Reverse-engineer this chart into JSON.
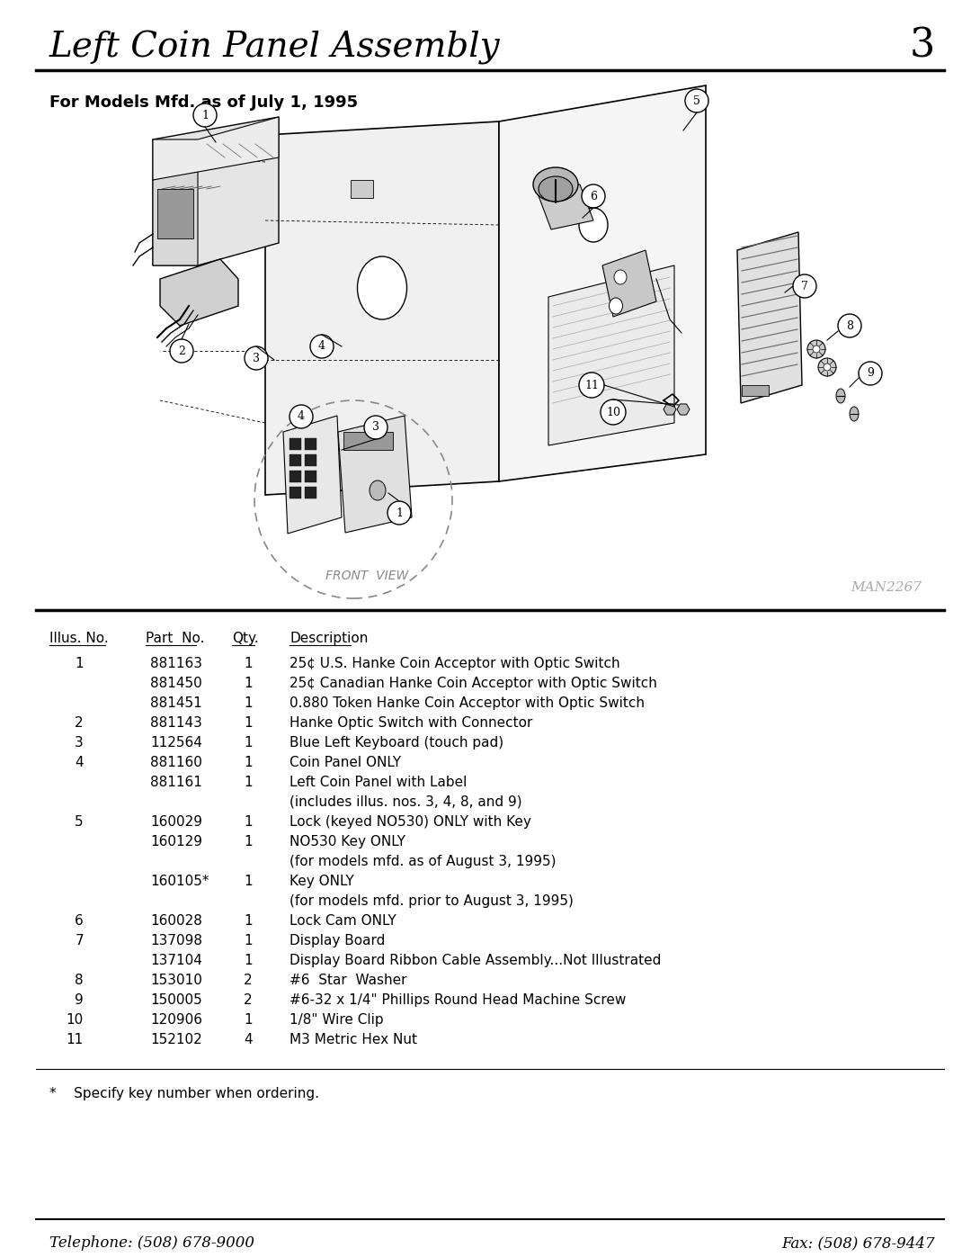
{
  "title": "Left Coin Panel Assembly",
  "page_number": "3",
  "subtitle": "For Models Mfd. as of July 1, 1995",
  "man_number": "MAN2267",
  "table_headers": [
    "Illus. No.",
    "Part  No.",
    "Qty.",
    "Description"
  ],
  "table_rows": [
    [
      "1",
      "881163",
      "1",
      "25¢ U.S. Hanke Coin Acceptor with Optic Switch"
    ],
    [
      "",
      "881450",
      "1",
      "25¢ Canadian Hanke Coin Acceptor with Optic Switch"
    ],
    [
      "",
      "881451",
      "1",
      "0.880 Token Hanke Coin Acceptor with Optic Switch"
    ],
    [
      "2",
      "881143",
      "1",
      "Hanke Optic Switch with Connector"
    ],
    [
      "3",
      "112564",
      "1",
      "Blue Left Keyboard (touch pad)"
    ],
    [
      "4",
      "881160",
      "1",
      "Coin Panel ONLY"
    ],
    [
      "",
      "881161",
      "1",
      "Left Coin Panel with Label"
    ],
    [
      "",
      "",
      "",
      "(includes illus. nos. 3, 4, 8, and 9)"
    ],
    [
      "5",
      "160029",
      "1",
      "Lock (keyed NO530) ONLY with Key"
    ],
    [
      "",
      "160129",
      "1",
      "NO530 Key ONLY"
    ],
    [
      "",
      "",
      "",
      "(for models mfd. as of August 3, 1995)"
    ],
    [
      "",
      "160105*",
      "1",
      "Key ONLY"
    ],
    [
      "",
      "",
      "",
      "(for models mfd. prior to August 3, 1995)"
    ],
    [
      "6",
      "160028",
      "1",
      "Lock Cam ONLY"
    ],
    [
      "7",
      "137098",
      "1",
      "Display Board"
    ],
    [
      "",
      "137104",
      "1",
      "Display Board Ribbon Cable Assembly...Not Illustrated"
    ],
    [
      "8",
      "153010",
      "2",
      "#6  Star  Washer"
    ],
    [
      "9",
      "150005",
      "2",
      "#6-32 x 1/4\" Phillips Round Head Machine Screw"
    ],
    [
      "10",
      "120906",
      "1",
      "1/8\" Wire Clip"
    ],
    [
      "11",
      "152102",
      "4",
      "M3 Metric Hex Nut"
    ]
  ],
  "footnote": "*    Specify key number when ordering.",
  "footer_left": "Telephone: (508) 678-9000",
  "footer_right": "Fax: (508) 678-9447",
  "bg_color": "#ffffff",
  "text_color": "#000000",
  "line_color": "#000000"
}
